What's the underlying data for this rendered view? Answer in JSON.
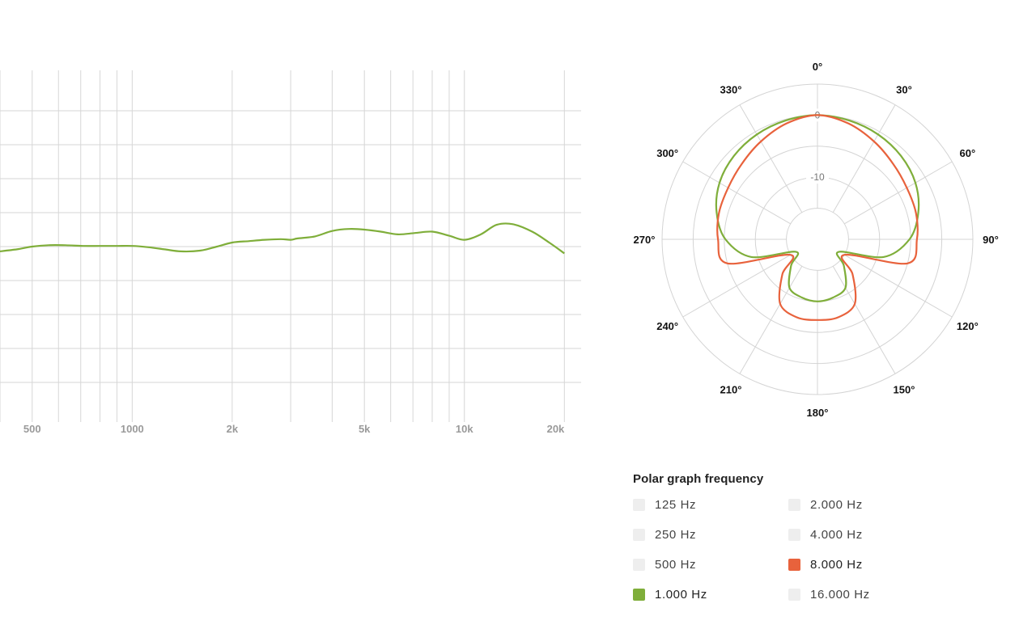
{
  "chart_data": [
    {
      "type": "line",
      "title": "",
      "xlabel": "",
      "ylabel": "",
      "x_scale": "log",
      "xlim": [
        400,
        21000
      ],
      "ylim": [
        -25,
        25
      ],
      "x_ticks": [
        {
          "value": 500,
          "label": "500"
        },
        {
          "value": 1000,
          "label": "1000"
        },
        {
          "value": 2000,
          "label": "2k"
        },
        {
          "value": 5000,
          "label": "5k"
        },
        {
          "value": 10000,
          "label": "10k"
        },
        {
          "value": 20000,
          "label": "20k"
        }
      ],
      "x_gridlines": [
        400,
        500,
        600,
        700,
        800,
        900,
        1000,
        2000,
        3000,
        4000,
        5000,
        6000,
        7000,
        8000,
        9000,
        10000,
        20000
      ],
      "y_gridlines": [
        20,
        15,
        10,
        5,
        0,
        -5,
        -10,
        -15,
        -20
      ],
      "grid": true,
      "series": [
        {
          "color": "#7fae3a",
          "x": [
            400,
            450,
            500,
            560,
            630,
            710,
            800,
            900,
            1000,
            1120,
            1250,
            1400,
            1600,
            1800,
            2000,
            2240,
            2500,
            2800,
            3000,
            3150,
            3550,
            4000,
            4500,
            5000,
            5600,
            6300,
            7100,
            8000,
            9000,
            10000,
            11200,
            12500,
            14000,
            16000,
            18000,
            20000
          ],
          "values": [
            -0.7,
            -0.4,
            0,
            0.2,
            0.2,
            0.1,
            0.1,
            0.1,
            0.1,
            -0.1,
            -0.4,
            -0.7,
            -0.6,
            0,
            0.6,
            0.8,
            1,
            1.1,
            1,
            1.2,
            1.5,
            2.3,
            2.6,
            2.5,
            2.2,
            1.8,
            2,
            2.2,
            1.6,
            1,
            1.8,
            3.2,
            3.3,
            2.2,
            0.6,
            -1
          ]
        }
      ]
    },
    {
      "type": "polar",
      "title": "",
      "angle_labels": [
        {
          "angle": 0,
          "label": "0°"
        },
        {
          "angle": 30,
          "label": "30°"
        },
        {
          "angle": 60,
          "label": "60°"
        },
        {
          "angle": 90,
          "label": "90°"
        },
        {
          "angle": 120,
          "label": "120°"
        },
        {
          "angle": 150,
          "label": "150°"
        },
        {
          "angle": 180,
          "label": "180°"
        },
        {
          "angle": 210,
          "label": "210°"
        },
        {
          "angle": 240,
          "label": "240°"
        },
        {
          "angle": 270,
          "label": "270°"
        },
        {
          "angle": 300,
          "label": "300°"
        },
        {
          "angle": 330,
          "label": "330°"
        }
      ],
      "radial_labels": [
        {
          "db": 0,
          "label": "0"
        },
        {
          "db": -10,
          "label": "-10"
        }
      ],
      "rlim": [
        -20,
        5
      ],
      "series": [
        {
          "name": "1.000 Hz",
          "color": "#7fae3a",
          "angles": [
            0,
            15,
            30,
            45,
            60,
            75,
            90,
            105,
            120,
            135,
            150,
            165,
            180,
            195,
            210,
            225,
            240,
            255,
            270,
            285,
            300,
            315,
            330,
            345
          ],
          "values": [
            0,
            -0.2,
            -0.5,
            -1,
            -1.8,
            -3.2,
            -5.2,
            -9,
            -16,
            -14,
            -11,
            -10.3,
            -10,
            -10.3,
            -11,
            -14,
            -16,
            -9,
            -5.2,
            -3.2,
            -1.8,
            -1,
            -0.5,
            -0.2
          ]
        },
        {
          "name": "8.000 Hz",
          "color": "#e8623c",
          "angles": [
            0,
            15,
            30,
            45,
            60,
            75,
            90,
            105,
            120,
            135,
            150,
            165,
            180,
            195,
            210,
            225,
            240,
            255,
            270,
            285,
            300,
            315,
            330,
            345
          ],
          "values": [
            0,
            -0.7,
            -1.8,
            -2.8,
            -3.4,
            -3.6,
            -4,
            -5,
            -15,
            -12,
            -8,
            -7,
            -7,
            -7,
            -8,
            -12,
            -15,
            -5,
            -4,
            -3.6,
            -3.4,
            -2.8,
            -1.8,
            -0.7
          ]
        }
      ]
    }
  ],
  "legend": {
    "title": "Polar graph frequency",
    "items": [
      {
        "label": "125 Hz",
        "active": false,
        "color": "#eeeeee"
      },
      {
        "label": "2.000 Hz",
        "active": false,
        "color": "#eeeeee"
      },
      {
        "label": "250 Hz",
        "active": false,
        "color": "#eeeeee"
      },
      {
        "label": "4.000 Hz",
        "active": false,
        "color": "#eeeeee"
      },
      {
        "label": "500 Hz",
        "active": false,
        "color": "#eeeeee"
      },
      {
        "label": "8.000 Hz",
        "active": true,
        "color": "#e8623c"
      },
      {
        "label": "1.000 Hz",
        "active": true,
        "color": "#7fae3a"
      },
      {
        "label": "16.000 Hz",
        "active": false,
        "color": "#eeeeee"
      }
    ]
  }
}
